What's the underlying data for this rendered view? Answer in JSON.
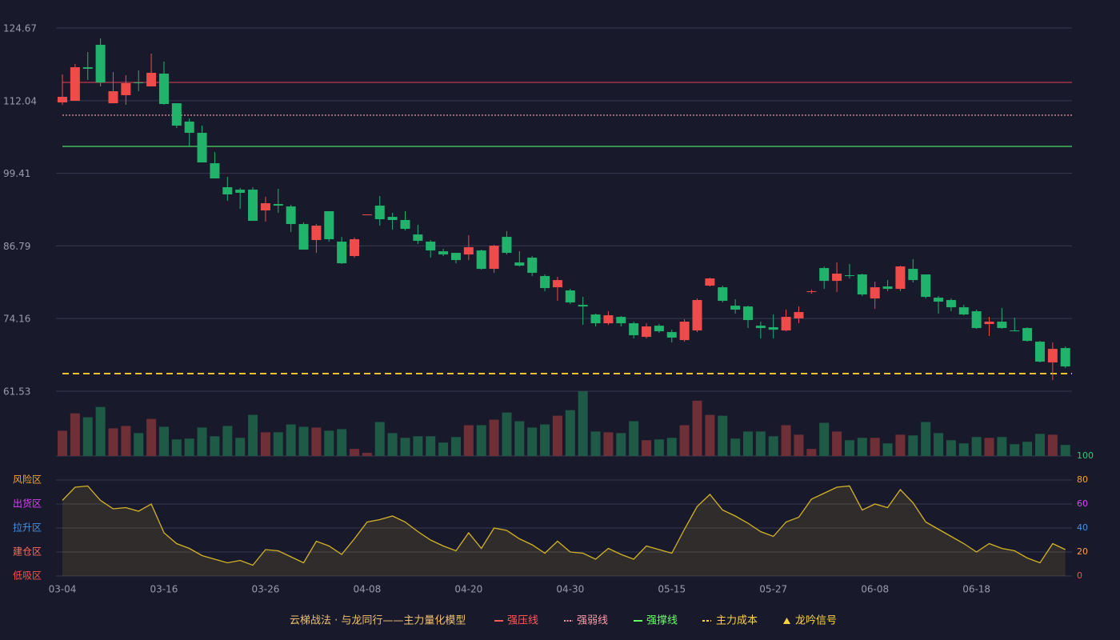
{
  "chart_data": {
    "type": "candlestick",
    "title": "云梯战法 · 与龙同行——主力量化模型",
    "categories": [
      "03-04",
      null,
      null,
      null,
      null,
      null,
      null,
      null,
      "03-16",
      null,
      null,
      null,
      null,
      null,
      null,
      null,
      "03-26",
      null,
      null,
      null,
      null,
      null,
      null,
      null,
      "04-08",
      null,
      null,
      null,
      null,
      null,
      null,
      null,
      "04-20",
      null,
      null,
      null,
      null,
      null,
      null,
      null,
      "04-30",
      null,
      null,
      null,
      null,
      null,
      null,
      null,
      "05-15",
      null,
      null,
      null,
      null,
      null,
      null,
      null,
      "05-27",
      null,
      null,
      null,
      null,
      null,
      null,
      null,
      "06-08",
      null,
      null,
      null,
      null,
      null,
      null,
      null,
      "06-18",
      null,
      null,
      null,
      null,
      null,
      null,
      null
    ],
    "open": [
      111.73,
      112.01,
      117.85,
      121.75,
      111.59,
      112.99,
      115.21,
      114.52,
      116.74,
      111.59,
      108.4,
      106.45,
      101.16,
      96.99,
      96.57,
      96.57,
      92.96,
      94.07,
      93.65,
      90.59,
      87.81,
      92.82,
      87.53,
      85.03,
      92.12,
      93.79,
      91.84,
      91.29,
      88.78,
      87.53,
      85.86,
      85.58,
      85.3,
      86.0,
      82.8,
      88.36,
      83.91,
      84.75,
      81.55,
      79.6,
      79.05,
      76.54,
      74.87,
      73.34,
      74.45,
      73.34,
      70.98,
      72.92,
      71.81,
      70.42,
      72.09,
      79.88,
      79.6,
      76.4,
      76.26,
      72.92,
      72.65,
      72.09,
      74.18,
      78.77,
      82.94,
      80.71,
      81.69,
      81.83,
      77.65,
      79.74,
      79.32,
      82.8,
      81.83,
      77.79,
      77.38,
      76.12,
      75.43,
      73.2,
      73.62,
      72.09,
      72.51,
      70.14,
      66.53,
      69.03
    ],
    "high": [
      116.6,
      118.41,
      120.5,
      122.86,
      117.02,
      116.46,
      117.3,
      120.22,
      118.83,
      111.59,
      108.95,
      107.7,
      103.11,
      98.8,
      96.85,
      96.99,
      95.32,
      96.71,
      93.93,
      90.87,
      90.59,
      92.82,
      88.36,
      88.23,
      92.26,
      95.46,
      92.54,
      92.82,
      90.45,
      87.81,
      86.28,
      85.58,
      88.64,
      86.14,
      86.97,
      89.34,
      85.86,
      85.03,
      81.83,
      81.41,
      79.32,
      77.93,
      75.01,
      75.43,
      74.59,
      73.62,
      73.34,
      73.2,
      72.23,
      74.04,
      77.65,
      81.27,
      79.88,
      77.52,
      76.4,
      73.62,
      74.87,
      75.71,
      76.26,
      79.18,
      83.22,
      83.91,
      83.64,
      81.97,
      80.58,
      80.85,
      83.36,
      84.47,
      81.83,
      78.07,
      77.65,
      76.54,
      75.71,
      74.45,
      75.98,
      74.31,
      72.65,
      70.28,
      70.0,
      69.31
    ],
    "low": [
      111.32,
      112.01,
      115.63,
      114.52,
      111.59,
      111.32,
      113.68,
      114.52,
      111.32,
      107.28,
      104.08,
      101.3,
      98.52,
      94.62,
      93.23,
      91.15,
      91.01,
      92.54,
      89.2,
      86.14,
      85.58,
      87.53,
      83.64,
      84.75,
      92.12,
      90.31,
      89.62,
      89.48,
      87.11,
      84.75,
      85.03,
      83.77,
      84.33,
      82.66,
      82.11,
      85.3,
      83.22,
      81.55,
      78.91,
      77.24,
      76.68,
      73.06,
      72.79,
      73.06,
      72.79,
      70.7,
      70.7,
      71.67,
      70.0,
      70.14,
      71.81,
      79.74,
      76.96,
      75.01,
      72.51,
      70.7,
      70.7,
      71.95,
      73.34,
      78.49,
      79.32,
      78.77,
      81.13,
      78.07,
      75.85,
      78.91,
      78.91,
      80.44,
      77.65,
      75.01,
      75.43,
      74.73,
      72.37,
      71.12,
      72.37,
      71.95,
      70.14,
      66.53,
      63.47,
      65.55
    ],
    "close": [
      112.71,
      117.85,
      117.58,
      115.21,
      113.68,
      115.07,
      115.07,
      116.88,
      111.46,
      107.7,
      106.45,
      101.3,
      98.52,
      95.74,
      96.02,
      91.15,
      94.21,
      93.79,
      90.59,
      86.14,
      90.31,
      87.95,
      83.77,
      87.95,
      92.26,
      91.43,
      91.29,
      89.76,
      87.67,
      86.0,
      85.3,
      84.33,
      86.56,
      82.8,
      86.83,
      85.58,
      83.36,
      82.11,
      79.46,
      80.85,
      76.96,
      76.26,
      73.34,
      74.73,
      73.34,
      71.26,
      72.79,
      71.95,
      70.84,
      73.62,
      77.38,
      81.13,
      77.24,
      75.71,
      73.9,
      72.51,
      72.23,
      74.45,
      75.29,
      78.91,
      80.71,
      81.97,
      81.55,
      78.35,
      79.6,
      79.32,
      83.22,
      80.85,
      77.93,
      77.1,
      76.12,
      74.87,
      72.51,
      73.62,
      72.51,
      72.05,
      70.28,
      66.67,
      68.89,
      65.83
    ],
    "volume": [
      32,
      54,
      49,
      62,
      35,
      38,
      29,
      47,
      37,
      21,
      22,
      36,
      25,
      38,
      23,
      52,
      30,
      30,
      40,
      37,
      36,
      32,
      34,
      9,
      4,
      43,
      29,
      23,
      25,
      25,
      17,
      24,
      39,
      39,
      46,
      55,
      44,
      36,
      40,
      51,
      58,
      82,
      31,
      30,
      29,
      44,
      20,
      21,
      23,
      39,
      70,
      52,
      51,
      22,
      31,
      31,
      25,
      39,
      27,
      9,
      42,
      31,
      20,
      23,
      23,
      16,
      27,
      26,
      43,
      29,
      20,
      16,
      24,
      23,
      24,
      15,
      18,
      28,
      27,
      14
    ],
    "ylim": [
      61.53,
      124.67
    ],
    "yticks": [
      61.53,
      74.16,
      86.79,
      99.41,
      112.04,
      124.67
    ],
    "volume_ylim": [
      0,
      82
    ],
    "up_color": "#ef4b4b",
    "down_color": "#21b36b",
    "volume_up_color": "#6e2f36",
    "volume_down_color": "#1e5a45",
    "grid": true,
    "levels": [
      {
        "name": "强压线",
        "value": 115.21,
        "color": "#c0394b",
        "style": "solid",
        "label_color": "#ff5a5a"
      },
      {
        "name": "强弱线",
        "value": 109.51,
        "color": "#ff8fa0",
        "style": "dotted",
        "label_color": "#ff9aa8"
      },
      {
        "name": "强撑线",
        "value": 104.09,
        "color": "#4cd964",
        "style": "solid",
        "label_color": "#6cff6c"
      },
      {
        "name": "主力成本",
        "value": 64.59,
        "color": "#f2c12e",
        "style": "dashed",
        "label_color": "#ffd23f"
      }
    ],
    "signal": {
      "name": "龙吟信号",
      "color": "#ffd23f"
    },
    "oscillator": {
      "type": "area",
      "color": "#d4b326",
      "values": [
        63,
        74,
        75,
        63,
        56,
        57,
        54,
        60,
        36,
        27,
        23,
        17,
        14,
        11,
        13,
        9,
        22,
        21,
        16,
        11,
        29,
        25,
        18,
        31,
        45,
        47,
        50,
        45,
        37,
        30,
        25,
        21,
        36,
        23,
        40,
        38,
        31,
        26,
        19,
        29,
        20,
        19,
        14,
        23,
        18,
        14,
        25,
        22,
        19,
        39,
        58,
        68,
        55,
        50,
        44,
        37,
        33,
        45,
        49,
        64,
        69,
        74,
        75,
        55,
        60,
        57,
        72,
        61,
        45,
        39,
        33,
        27,
        20,
        27,
        23,
        21,
        15,
        11,
        27,
        22
      ],
      "ylim": [
        0,
        100
      ],
      "yticks": [
        0,
        20,
        40,
        60,
        80,
        100
      ],
      "ytick_colors": [
        "#ff4d4d",
        "#ff9f43",
        "#4a90e2",
        "#e040fb",
        "#f5a623",
        "#2ecc71"
      ],
      "zones": [
        {
          "name": "风险区",
          "value": 80,
          "color": "#f5a623"
        },
        {
          "name": "出货区",
          "value": 60,
          "color": "#e040fb"
        },
        {
          "name": "拉升区",
          "value": 40,
          "color": "#4a90e2"
        },
        {
          "name": "建仓区",
          "value": 20,
          "color": "#ff6b5a"
        },
        {
          "name": "低吸区",
          "value": 0,
          "color": "#ff4d4d"
        }
      ]
    }
  }
}
